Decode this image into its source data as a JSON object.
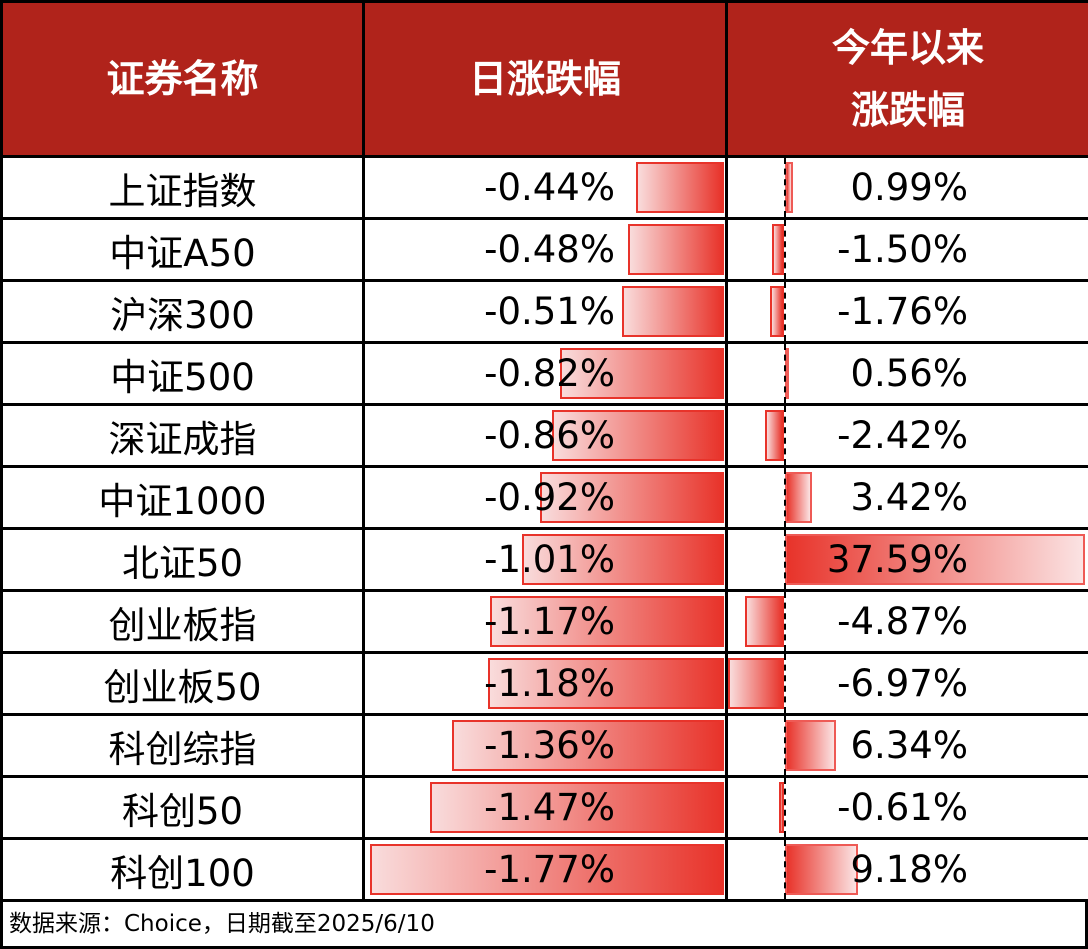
{
  "headers": [
    "证券名称",
    "日涨跌幅",
    "今年以来涨跌幅"
  ],
  "header_lines": {
    "c3a": "今年以来",
    "c3b": "涨跌幅"
  },
  "rows": [
    {
      "name": "上证指数",
      "daily": "-0.44%",
      "ytd": "0.99%",
      "d": -0.44,
      "y": 0.99
    },
    {
      "name": "中证A50",
      "daily": "-0.48%",
      "ytd": "-1.50%",
      "d": -0.48,
      "y": -1.5
    },
    {
      "name": "沪深300",
      "daily": "-0.51%",
      "ytd": "-1.76%",
      "d": -0.51,
      "y": -1.76
    },
    {
      "name": "中证500",
      "daily": "-0.82%",
      "ytd": "0.56%",
      "d": -0.82,
      "y": 0.56
    },
    {
      "name": "深证成指",
      "daily": "-0.86%",
      "ytd": "-2.42%",
      "d": -0.86,
      "y": -2.42
    },
    {
      "name": "中证1000",
      "daily": "-0.92%",
      "ytd": "3.42%",
      "d": -0.92,
      "y": 3.42
    },
    {
      "name": "北证50",
      "daily": "-1.01%",
      "ytd": "37.59%",
      "d": -1.01,
      "y": 37.59
    },
    {
      "name": "创业板指",
      "daily": "-1.17%",
      "ytd": "-4.87%",
      "d": -1.17,
      "y": -4.87
    },
    {
      "name": "创业板50",
      "daily": "-1.18%",
      "ytd": "-6.97%",
      "d": -1.18,
      "y": -6.97
    },
    {
      "name": "科创综指",
      "daily": "-1.36%",
      "ytd": "6.34%",
      "d": -1.36,
      "y": 6.34
    },
    {
      "name": "科创50",
      "daily": "-1.47%",
      "ytd": "-0.61%",
      "d": -1.47,
      "y": -0.61
    },
    {
      "name": "科创100",
      "daily": "-1.77%",
      "ytd": "9.18%",
      "d": -1.77,
      "y": 9.18
    }
  ],
  "footer": "数据来源：Choice，日期截至2025/6/10",
  "colors": {
    "header": "#B0231B",
    "bar": "#E8332A"
  }
}
